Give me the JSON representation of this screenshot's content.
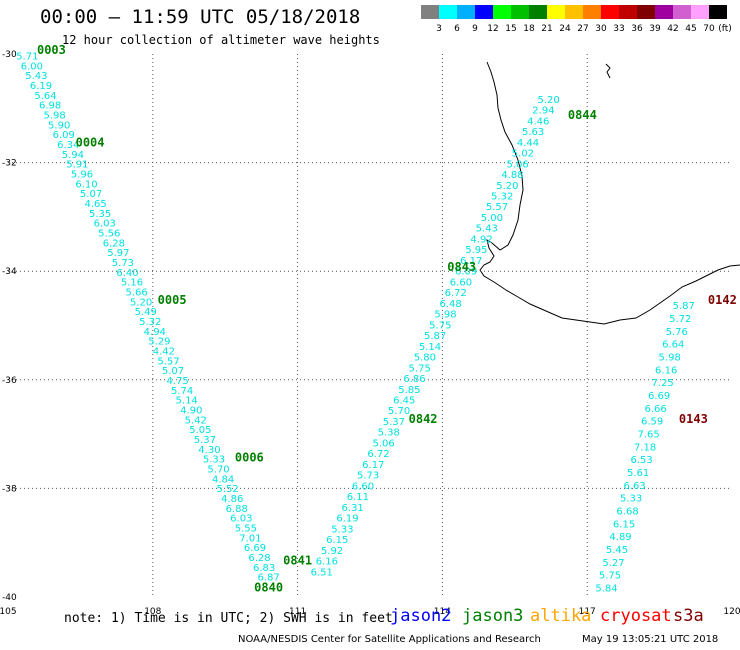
{
  "title": "00:00 – 11:59 UTC 05/18/2018",
  "subtitle": "12 hour collection of altimeter wave heights",
  "legend": {
    "unit": "(ft)",
    "bins": [
      {
        "label": "3",
        "color": "#808080"
      },
      {
        "label": "6",
        "color": "#00ffff"
      },
      {
        "label": "9",
        "color": "#00b0ff"
      },
      {
        "label": "12",
        "color": "#0000ff"
      },
      {
        "label": "15",
        "color": "#00ff00"
      },
      {
        "label": "18",
        "color": "#00c000"
      },
      {
        "label": "21",
        "color": "#008000"
      },
      {
        "label": "24",
        "color": "#ffff00"
      },
      {
        "label": "27",
        "color": "#ffc000"
      },
      {
        "label": "30",
        "color": "#ff8000"
      },
      {
        "label": "33",
        "color": "#ff0000"
      },
      {
        "label": "36",
        "color": "#c00000"
      },
      {
        "label": "39",
        "color": "#800000"
      },
      {
        "label": "42",
        "color": "#a000a0"
      },
      {
        "label": "45",
        "color": "#d060d0"
      },
      {
        "label": "70",
        "color": "#ffa0ff"
      },
      {
        "label": "",
        "color": "#000000"
      }
    ]
  },
  "axes": {
    "x_ticks": [
      "105",
      "108",
      "111",
      "114",
      "117",
      "120"
    ],
    "y_ticks": [
      "-30",
      "-32",
      "-34",
      "-36",
      "-38",
      "-40"
    ]
  },
  "colors": {
    "jason3": "#008000",
    "cryosat": "#800000",
    "s3a": "#ff60ff",
    "swh": "#00e0e0"
  },
  "chart_data": {
    "type": "map",
    "lon_range": [
      105,
      120
    ],
    "lat_range": [
      -40,
      -30
    ],
    "grid": true,
    "tracks": [
      {
        "satellite": "jason3",
        "start": [
          105.4,
          -30.1
        ],
        "end": [
          110.4,
          -39.7
        ],
        "swh_ft": [
          "5.71",
          "6.00",
          "5.43",
          "6.19",
          "5.64",
          "6.98",
          "5.98",
          "5.90",
          "6.09",
          "6.34",
          "5.94",
          "5.91",
          "5.96",
          "6.10",
          "5.07",
          "4.65",
          "5.35",
          "6.03",
          "5.56",
          "6.28",
          "5.97",
          "5.73",
          "6.40",
          "5.16",
          "5.66",
          "5.20",
          "5.49",
          "5.32",
          "4.94",
          "5.29",
          "4.42",
          "5.57",
          "5.07",
          "4.75",
          "5.74",
          "5.14",
          "4.90",
          "5.42",
          "5.05",
          "5.37",
          "4.30",
          "5.33",
          "5.70",
          "4.84",
          "5.52",
          "4.86",
          "6.88",
          "6.03",
          "5.55",
          "7.01",
          "6.69",
          "6.28",
          "6.83",
          "6.87"
        ],
        "time_labels": [
          {
            "text": "0003",
            "lon": 105.9,
            "lat": -30.0
          },
          {
            "text": "0004",
            "lon": 106.7,
            "lat": -31.7
          },
          {
            "text": "0005",
            "lon": 108.4,
            "lat": -34.6
          },
          {
            "text": "0006",
            "lon": 110.0,
            "lat": -37.5
          },
          {
            "text": "0840",
            "lon": 110.4,
            "lat": -39.9
          }
        ]
      },
      {
        "satellite": "jason3",
        "start": [
          111.5,
          -39.6
        ],
        "end": [
          116.2,
          -30.9
        ],
        "swh_ft": [
          "6.51",
          "6.16",
          "5.92",
          "6.15",
          "5.33",
          "6.19",
          "6.31",
          "6.11",
          "6.60",
          "5.73",
          "6.17",
          "6.72",
          "5.06",
          "5.38",
          "5.37",
          "5.70",
          "6.45",
          "5.85",
          "6.86",
          "5.75",
          "5.80",
          "5.14",
          "5.87",
          "5.75",
          "5.98",
          "6.48",
          "6.72",
          "6.60",
          "6.09",
          "6.17",
          "5.95",
          "4.92",
          "5.43",
          "5.00",
          "5.57",
          "5.32",
          "5.20",
          "4.88",
          "5.06",
          "5.02",
          "4.44",
          "5.63",
          "4.46",
          "2.94",
          "5.20"
        ],
        "time_labels": [
          {
            "text": "0841",
            "lon": 111.0,
            "lat": -39.4
          },
          {
            "text": "0842",
            "lon": 113.6,
            "lat": -36.8
          },
          {
            "text": "0843",
            "lon": 114.4,
            "lat": -34.0
          },
          {
            "text": "0844",
            "lon": 116.9,
            "lat": -31.2
          }
        ]
      },
      {
        "satellite": "s3a",
        "start": [
          119.0,
          -34.7
        ],
        "end": [
          117.4,
          -39.9
        ],
        "swh_ft": [
          "5.87",
          "5.72",
          "5.76",
          "6.64",
          "5.98",
          "6.16",
          "7.25",
          "6.69",
          "6.66",
          "6.59",
          "7.65",
          "7.18",
          "6.53",
          "5.61",
          "6.63",
          "5.33",
          "6.68",
          "6.15",
          "4.89",
          "5.45",
          "5.27",
          "5.75",
          "5.84"
        ],
        "time_labels": [
          {
            "text": "0142",
            "lon": 119.8,
            "lat": -34.6
          },
          {
            "text": "0143",
            "lon": 119.2,
            "lat": -36.8
          }
        ]
      }
    ]
  },
  "note": "note: 1) Time is in UTC; 2) SWH is in feet",
  "satellites": {
    "jason2": "jason2",
    "jason3": "jason3",
    "altika": "altika",
    "cryosat": "cryosat",
    "s3a": "s3a"
  },
  "credit": "NOAA/NESDIS Center for Satellite Applications and Research",
  "timestamp": "May 19 13:05:21 UTC 2018"
}
